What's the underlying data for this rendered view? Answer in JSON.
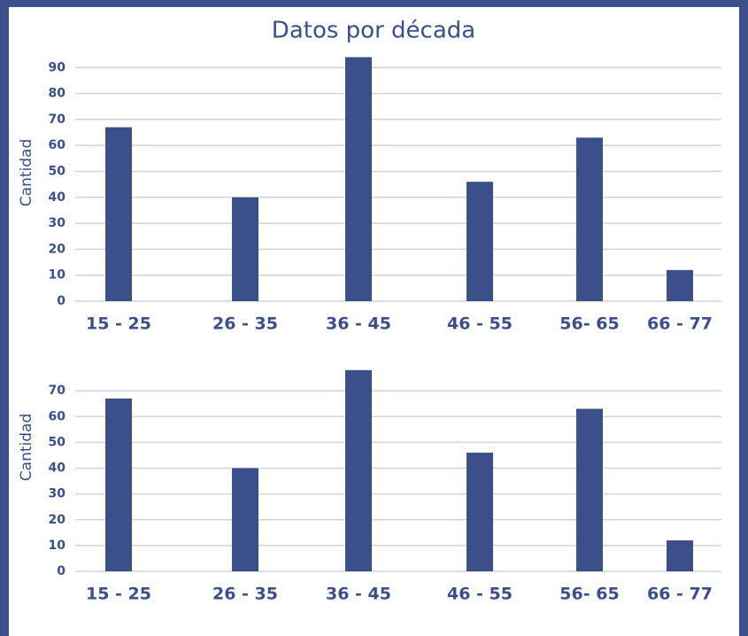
{
  "chart_data": [
    {
      "type": "bar",
      "title": "Datos por década",
      "ylabel": "Cantidad",
      "categories": [
        "15 - 25",
        "26 - 35",
        "36 - 45",
        "46 - 55",
        "56- 65",
        "66 - 77"
      ],
      "values": [
        67,
        40,
        94,
        46,
        63,
        12
      ],
      "color": "#3b4f8a",
      "ylim": [
        0,
        95
      ],
      "yticks": [
        0,
        10,
        20,
        30,
        40,
        50,
        60,
        70,
        80,
        90
      ],
      "grid": true
    },
    {
      "type": "bar",
      "ylabel": "Cantidad",
      "categories": [
        "15 - 25",
        "26 - 35",
        "36 - 45",
        "46 - 55",
        "56- 65",
        "66 - 77"
      ],
      "values": [
        67,
        40,
        78,
        46,
        63,
        12
      ],
      "color": "#3b4f8a",
      "ylim": [
        0,
        80
      ],
      "yticks": [
        0,
        10,
        20,
        30,
        40,
        50,
        60,
        70
      ],
      "grid": true
    }
  ]
}
